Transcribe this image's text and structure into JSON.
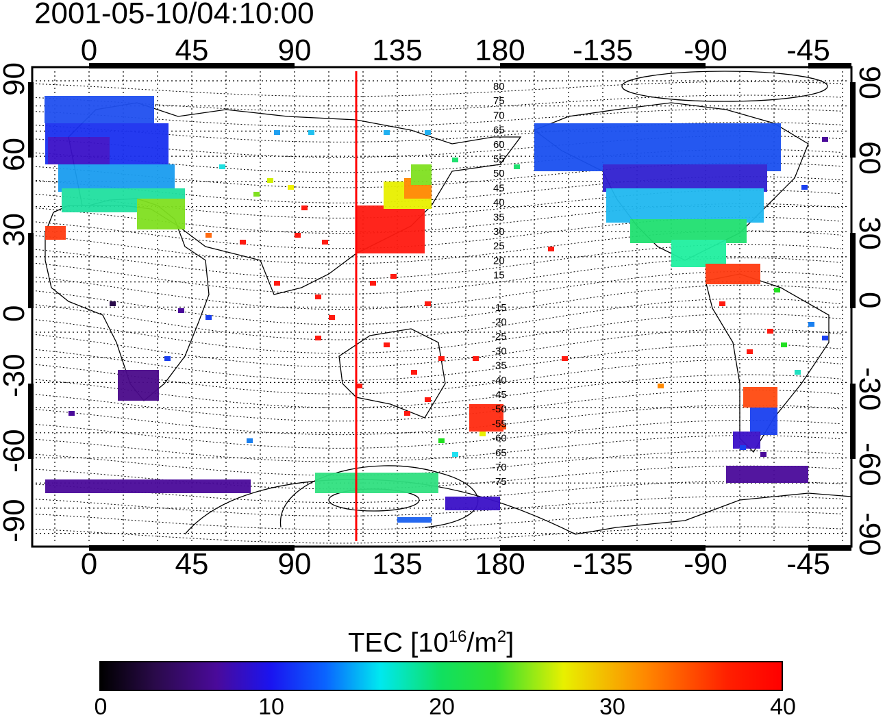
{
  "header": {
    "timestamp": "2001-05-10/04:10:00"
  },
  "axes": {
    "top_ticks": [
      "0",
      "45",
      "90",
      "135",
      "180",
      "-135",
      "-90",
      "-45"
    ],
    "bottom_ticks": [
      "0",
      "45",
      "90",
      "135",
      "180",
      "-135",
      "-90",
      "-45"
    ],
    "left_ticks": [
      "90",
      "60",
      "30",
      "0",
      "-30",
      "-60",
      "-90"
    ],
    "right_ticks": [
      "90",
      "60",
      "30",
      "0",
      "-30",
      "-60",
      "-90"
    ]
  },
  "contour_labels": [
    "80",
    "75",
    "70",
    "65",
    "60",
    "55",
    "50",
    "45",
    "40",
    "35",
    "30",
    "25",
    "20",
    "15",
    "-15",
    "-20",
    "-25",
    "-30",
    "-35",
    "-40",
    "-45",
    "-50",
    "-55",
    "-60",
    "-65",
    "-70",
    "-75"
  ],
  "colorbar": {
    "title_prefix": "TEC  [10",
    "title_exp1": "16",
    "title_mid": "/m",
    "title_exp2": "2",
    "title_suffix": "]",
    "ticks": [
      "0",
      "10",
      "20",
      "30",
      "40"
    ]
  },
  "colors": {
    "meridian_line": "#ff0000",
    "frame": "#000000"
  }
}
